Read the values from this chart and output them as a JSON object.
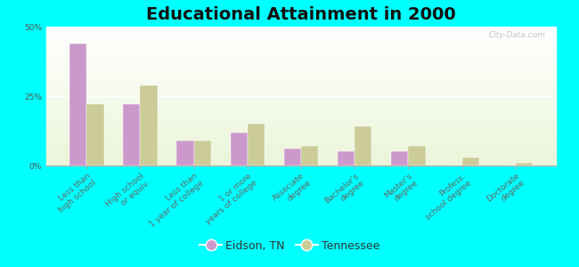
{
  "title": "Educational Attainment in 2000",
  "categories": [
    "Less than\nhigh school",
    "High school\nor equiv.",
    "Less than\n1 year of college",
    "1 or more\nyears of college",
    "Associate\ndegree",
    "Bachelor's\ndegree",
    "Master's\ndegree",
    "Profess.\nschool degree",
    "Doctorate\ndegree"
  ],
  "eidson_values": [
    44,
    22,
    9,
    12,
    6,
    5,
    5,
    0,
    0
  ],
  "tennessee_values": [
    22,
    29,
    9,
    15,
    7,
    14,
    7,
    3,
    1
  ],
  "eidson_color": "#cc99cc",
  "tennessee_color": "#cccc99",
  "background_color": "#00ffff",
  "ylim": [
    0,
    50
  ],
  "yticks": [
    0,
    25,
    50
  ],
  "ytick_labels": [
    "0%",
    "25%",
    "50%"
  ],
  "legend_labels": [
    "Eidson, TN",
    "Tennessee"
  ],
  "watermark": "City-Data.com",
  "title_fontsize": 14,
  "tick_fontsize": 6.5,
  "legend_fontsize": 9,
  "bar_width": 0.32
}
